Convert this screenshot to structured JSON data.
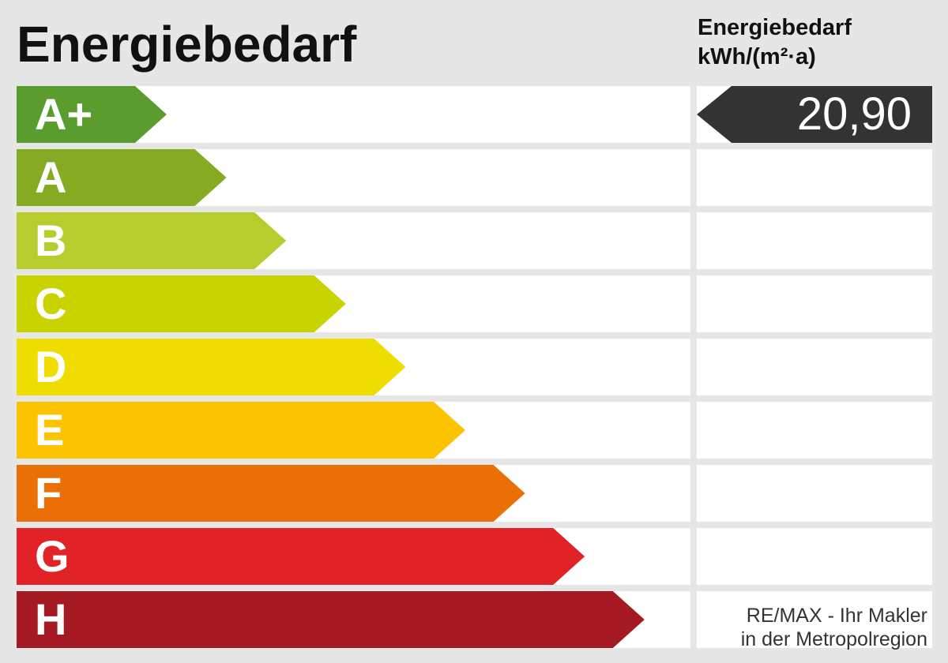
{
  "title": "Energiebedarf",
  "value_header": {
    "line1": "Energiebedarf",
    "line2": "kWh/(m²·a)"
  },
  "value_display": "20,90",
  "footer": {
    "line1": "RE/MAX - Ihr Makler",
    "line2": "in der Metropolregion"
  },
  "chart_data": {
    "type": "bar",
    "title": "Energiebedarf",
    "ylabel": "kWh/(m²·a)",
    "categories": [
      "A+",
      "A",
      "B",
      "C",
      "D",
      "E",
      "F",
      "G",
      "H"
    ],
    "colors": [
      "#5a9c2e",
      "#84ab21",
      "#b7cd2e",
      "#c8d300",
      "#f0dd00",
      "#fcc400",
      "#ea7006",
      "#e12226",
      "#a51a22"
    ],
    "current_class": "A+",
    "value": 20.9
  }
}
